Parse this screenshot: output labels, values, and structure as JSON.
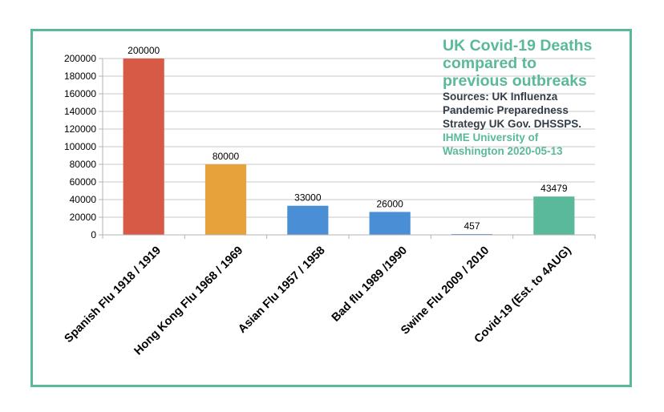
{
  "chart_data": {
    "type": "bar",
    "title_lines": [
      "UK Covid-19 Deaths",
      "compared to",
      "previous outbreaks"
    ],
    "source_lines": [
      "Sources: UK Influenza",
      "Pandemic Preparedness",
      "Strategy UK Gov. DHSSPS."
    ],
    "source_lines_green": [
      "IHME University of",
      "Washington 2020-05-13"
    ],
    "categories": [
      "Spanish Flu 1918 / 1919",
      "Hong Kong Flu 1968 / 1969",
      "Asian Flu 1957 / 1958",
      "Bad flu 1989 /1990",
      "Swine Flu 2009 / 2010",
      "Covid-19 (Est. to 4AUG)"
    ],
    "values": [
      200000,
      80000,
      33000,
      26000,
      457,
      43479
    ],
    "data_labels": [
      "200000",
      "80000",
      "33000",
      "26000",
      "457",
      "43479"
    ],
    "colors": [
      "#d65a45",
      "#e8a23c",
      "#4a8fd6",
      "#4a8fd6",
      "#4a8fd6",
      "#5ab99a"
    ],
    "ylim": [
      0,
      200000
    ],
    "yticks": [
      0,
      20000,
      40000,
      60000,
      80000,
      100000,
      120000,
      140000,
      160000,
      180000,
      200000
    ],
    "grid": true,
    "xlabel": "",
    "ylabel": ""
  }
}
